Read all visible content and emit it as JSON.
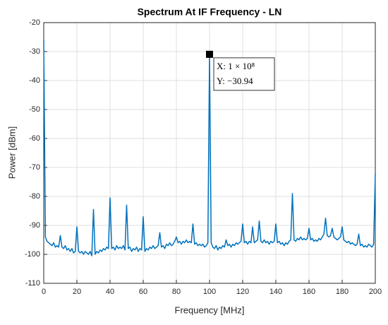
{
  "chart_data": {
    "type": "line",
    "title": "Spectrum At IF Frequency - LN",
    "x_label": "Frequency [MHz]",
    "y_label": "Power [dBm]",
    "xlim": [
      0,
      200
    ],
    "xticks": [
      0,
      20,
      40,
      60,
      80,
      100,
      120,
      140,
      160,
      180,
      200
    ],
    "ylim": [
      -110,
      -20
    ],
    "yticks": [
      -110,
      -100,
      -90,
      -80,
      -70,
      -60,
      -50,
      -40,
      -30,
      -20
    ],
    "grid": true,
    "datatip": {
      "x_label": "X: 1 × 10⁸",
      "y_label": "Y: −30.94",
      "point_index": 100
    },
    "series": [
      {
        "name": "Spectrum",
        "color": "#0072bd",
        "x": [
          0,
          1,
          2,
          3,
          4,
          5,
          6,
          7,
          8,
          9,
          10,
          11,
          12,
          13,
          14,
          15,
          16,
          17,
          18,
          19,
          20,
          21,
          22,
          23,
          24,
          25,
          26,
          27,
          28,
          29,
          30,
          31,
          32,
          33,
          34,
          35,
          36,
          37,
          38,
          39,
          40,
          41,
          42,
          43,
          44,
          45,
          46,
          47,
          48,
          49,
          50,
          51,
          52,
          53,
          54,
          55,
          56,
          57,
          58,
          59,
          60,
          61,
          62,
          63,
          64,
          65,
          66,
          67,
          68,
          69,
          70,
          71,
          72,
          73,
          74,
          75,
          76,
          77,
          78,
          79,
          80,
          81,
          82,
          83,
          84,
          85,
          86,
          87,
          88,
          89,
          90,
          91,
          92,
          93,
          94,
          95,
          96,
          97,
          98,
          99,
          100,
          101,
          102,
          103,
          104,
          105,
          106,
          107,
          108,
          109,
          110,
          111,
          112,
          113,
          114,
          115,
          116,
          117,
          118,
          119,
          120,
          121,
          122,
          123,
          124,
          125,
          126,
          127,
          128,
          129,
          130,
          131,
          132,
          133,
          134,
          135,
          136,
          137,
          138,
          139,
          140,
          141,
          142,
          143,
          144,
          145,
          146,
          147,
          148,
          149,
          150,
          151,
          152,
          153,
          154,
          155,
          156,
          157,
          158,
          159,
          160,
          161,
          162,
          163,
          164,
          165,
          166,
          167,
          168,
          169,
          170,
          171,
          172,
          173,
          174,
          175,
          176,
          177,
          178,
          179,
          180,
          181,
          182,
          183,
          184,
          185,
          186,
          187,
          188,
          189,
          190,
          191,
          192,
          193,
          194,
          195,
          196,
          197,
          198,
          199,
          200
        ],
        "values": [
          -26,
          -94,
          -95.5,
          -96,
          -96.5,
          -97,
          -96,
          -97.5,
          -97,
          -97.5,
          -93.5,
          -97.5,
          -98,
          -97,
          -98.5,
          -98,
          -99,
          -98,
          -99.5,
          -99,
          -90.5,
          -99,
          -99.5,
          -99,
          -100,
          -99,
          -99.5,
          -100,
          -99,
          -100.5,
          -84.5,
          -100,
          -99,
          -99.5,
          -98.5,
          -99,
          -98,
          -98.5,
          -97.5,
          -98,
          -80.5,
          -98,
          -97.5,
          -98.5,
          -97,
          -98,
          -97.5,
          -98,
          -97,
          -98.5,
          -83,
          -98,
          -97.5,
          -99,
          -98,
          -98.5,
          -97.5,
          -99,
          -98,
          -98.5,
          -87,
          -99,
          -98,
          -98.5,
          -97.5,
          -98,
          -97,
          -98,
          -97.5,
          -97,
          -92.5,
          -97.5,
          -97,
          -98,
          -96.5,
          -97,
          -96,
          -97,
          -96.5,
          -95.5,
          -94,
          -96,
          -95.5,
          -96.5,
          -95.5,
          -96,
          -95,
          -96,
          -95.5,
          -96,
          -89.5,
          -96.5,
          -96,
          -97,
          -96.5,
          -97,
          -96.5,
          -97.5,
          -97,
          -96,
          -30.94,
          -96,
          -97.5,
          -98,
          -97,
          -98.5,
          -97.5,
          -98,
          -97,
          -97.5,
          -95,
          -97,
          -96.5,
          -97.5,
          -96.5,
          -97,
          -96,
          -96.5,
          -96,
          -95.5,
          -89.5,
          -96,
          -95.5,
          -96.5,
          -95.5,
          -96,
          -90.5,
          -96,
          -95.5,
          -95,
          -88.5,
          -95.5,
          -96,
          -95,
          -96,
          -95.5,
          -96.5,
          -95.5,
          -96,
          -95.5,
          -89.5,
          -96,
          -95.5,
          -96.5,
          -96,
          -97,
          -96,
          -96.5,
          -95.5,
          -95,
          -79,
          -95,
          -95.5,
          -94.5,
          -95,
          -94,
          -95,
          -94.5,
          -95,
          -94.5,
          -91,
          -95,
          -94.5,
          -95.5,
          -95,
          -95.5,
          -94.5,
          -95,
          -94,
          -93,
          -87.5,
          -93.5,
          -94,
          -93.5,
          -91,
          -94,
          -94.5,
          -95,
          -94.5,
          -94,
          -90.5,
          -95,
          -95.5,
          -96,
          -95.5,
          -96.5,
          -96,
          -96.5,
          -97,
          -96.5,
          -93,
          -97,
          -96.5,
          -97.5,
          -97,
          -97.5,
          -96.5,
          -97,
          -97.5,
          -96.5,
          -72
        ]
      }
    ]
  }
}
